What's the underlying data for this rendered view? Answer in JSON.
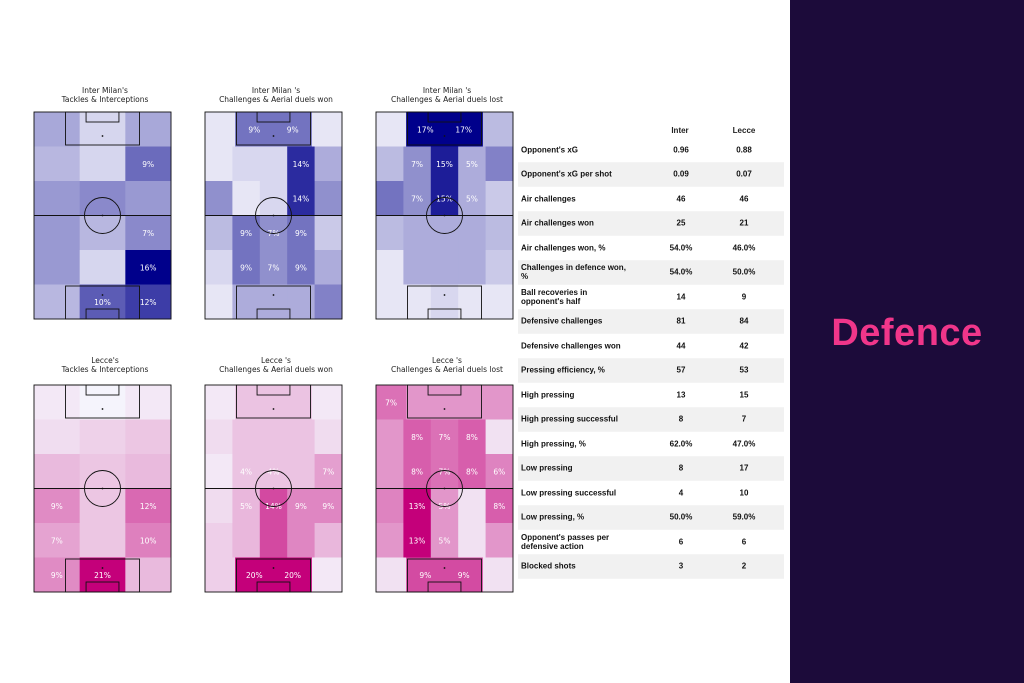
{
  "heading": "Defence",
  "chart_data": [
    {
      "type": "heatmap",
      "title": "Inter Milan's\nTackles & Interceptions",
      "color": "#00008b",
      "cells": [
        [
          5,
          2,
          5
        ],
        [
          4,
          2,
          9
        ],
        [
          6,
          7,
          6
        ],
        [
          6,
          4,
          7
        ],
        [
          6,
          2,
          16
        ],
        [
          4,
          10,
          12
        ]
      ],
      "shown": [
        [
          false,
          false,
          false
        ],
        [
          false,
          false,
          true
        ],
        [
          false,
          false,
          false
        ],
        [
          false,
          false,
          true
        ],
        [
          false,
          false,
          true
        ],
        [
          false,
          true,
          true
        ]
      ],
      "cmax": 16
    },
    {
      "type": "heatmap",
      "title": "Inter Milan 's\nChallenges & Aerial duels won",
      "color": "#00008b",
      "cells": [
        [
          1,
          9,
          9,
          1
        ],
        [
          1,
          2,
          2,
          14,
          5
        ],
        [
          7,
          1,
          2,
          14,
          7
        ],
        [
          4,
          9,
          7,
          9,
          3
        ],
        [
          2,
          9,
          7,
          9,
          5
        ],
        [
          1,
          5,
          5,
          5,
          8
        ]
      ],
      "shown": [
        [
          false,
          true,
          true,
          false
        ],
        [
          false,
          false,
          false,
          true,
          false
        ],
        [
          false,
          false,
          false,
          true,
          false
        ],
        [
          false,
          true,
          true,
          true,
          false
        ],
        [
          false,
          true,
          true,
          true,
          false
        ],
        [
          false,
          false,
          false,
          false,
          false
        ]
      ],
      "cmax": 17
    },
    {
      "type": "heatmap",
      "title": "Inter Milan 's\nChallenges & Aerial duels lost",
      "color": "#00008b",
      "cells": [
        [
          1,
          17,
          17,
          4
        ],
        [
          4,
          7,
          15,
          5,
          8
        ],
        [
          9,
          7,
          15,
          5,
          3
        ],
        [
          4,
          5,
          5,
          5,
          4
        ],
        [
          1,
          5,
          5,
          5,
          3
        ],
        [
          1,
          1,
          2,
          1,
          1
        ]
      ],
      "shown": [
        [
          false,
          true,
          true,
          false
        ],
        [
          false,
          true,
          true,
          true,
          false
        ],
        [
          false,
          true,
          true,
          true,
          false
        ],
        [
          false,
          false,
          false,
          false,
          false
        ],
        [
          false,
          false,
          false,
          false,
          false
        ],
        [
          false,
          false,
          false,
          false,
          false
        ]
      ],
      "cmax": 17
    },
    {
      "type": "heatmap",
      "title": "Lecce's\nTackles & Interceptions",
      "color": "#c4007a",
      "cells": [
        [
          1,
          0,
          1
        ],
        [
          2,
          3,
          4
        ],
        [
          5,
          4,
          5
        ],
        [
          9,
          4,
          12
        ],
        [
          7,
          4,
          10
        ],
        [
          9,
          21,
          5
        ]
      ],
      "shown": [
        [
          false,
          false,
          false
        ],
        [
          false,
          false,
          false
        ],
        [
          false,
          false,
          false
        ],
        [
          true,
          false,
          true
        ],
        [
          true,
          false,
          true
        ],
        [
          true,
          true,
          false
        ]
      ],
      "cmax": 21
    },
    {
      "type": "heatmap",
      "title": "Lecce 's\nChallenges & Aerial duels won",
      "color": "#c4007a",
      "cells": [
        [
          1,
          4,
          4,
          1
        ],
        [
          2,
          4,
          4,
          4,
          2
        ],
        [
          1,
          4,
          4,
          4,
          7
        ],
        [
          2,
          5,
          14,
          9,
          9
        ],
        [
          3,
          5,
          14,
          9,
          5
        ],
        [
          3,
          20,
          20,
          1
        ]
      ],
      "shown": [
        [
          false,
          false,
          false,
          false
        ],
        [
          false,
          false,
          false,
          false,
          false
        ],
        [
          false,
          true,
          true,
          false,
          true
        ],
        [
          false,
          true,
          true,
          true,
          true
        ],
        [
          false,
          false,
          false,
          false,
          false
        ],
        [
          false,
          true,
          true,
          false
        ]
      ],
      "cmax": 20
    },
    {
      "type": "heatmap",
      "title": "Lecce 's\nChallenges & Aerial duels lost",
      "color": "#c4007a",
      "cells": [
        [
          7,
          5,
          5,
          5
        ],
        [
          5,
          8,
          7,
          8,
          1
        ],
        [
          5,
          8,
          7,
          8,
          6
        ],
        [
          6,
          13,
          5,
          1,
          8
        ],
        [
          5,
          13,
          5,
          1,
          5
        ],
        [
          1,
          9,
          9,
          1
        ]
      ],
      "shown": [
        [
          true,
          false,
          false,
          false
        ],
        [
          false,
          true,
          true,
          true,
          false
        ],
        [
          false,
          true,
          true,
          true,
          true
        ],
        [
          false,
          true,
          true,
          false,
          true
        ],
        [
          false,
          true,
          true,
          false,
          false
        ],
        [
          false,
          true,
          true,
          false
        ]
      ],
      "cmax": 13
    }
  ],
  "stats": {
    "team1": "Inter",
    "team2": "Lecce",
    "rows": [
      {
        "label": "Opponent's xG",
        "a": "0.96",
        "b": "0.88"
      },
      {
        "label": "Opponent's xG per shot",
        "a": "0.09",
        "b": "0.07"
      },
      {
        "label": "Air challenges",
        "a": "46",
        "b": "46"
      },
      {
        "label": "Air challenges won",
        "a": "25",
        "b": "21"
      },
      {
        "label": "Air challenges won, %",
        "a": "54.0%",
        "b": "46.0%"
      },
      {
        "label": "Challenges in defence won, %",
        "a": "54.0%",
        "b": "50.0%"
      },
      {
        "label": "Ball recoveries in opponent's half",
        "a": "14",
        "b": "9"
      },
      {
        "label": "Defensive challenges",
        "a": "81",
        "b": "84"
      },
      {
        "label": "Defensive challenges won",
        "a": "44",
        "b": "42"
      },
      {
        "label": "Pressing efficiency, %",
        "a": "57",
        "b": "53"
      },
      {
        "label": "High pressing",
        "a": "13",
        "b": "15"
      },
      {
        "label": "High pressing successful",
        "a": "8",
        "b": "7"
      },
      {
        "label": "High pressing, %",
        "a": "62.0%",
        "b": "47.0%"
      },
      {
        "label": "Low pressing",
        "a": "8",
        "b": "17"
      },
      {
        "label": "Low pressing successful",
        "a": "4",
        "b": "10"
      },
      {
        "label": "Low pressing, %",
        "a": "50.0%",
        "b": "59.0%"
      },
      {
        "label": "Opponent's passes per defensive action",
        "a": "6",
        "b": "6"
      },
      {
        "label": "Blocked shots",
        "a": "3",
        "b": "2"
      }
    ]
  }
}
